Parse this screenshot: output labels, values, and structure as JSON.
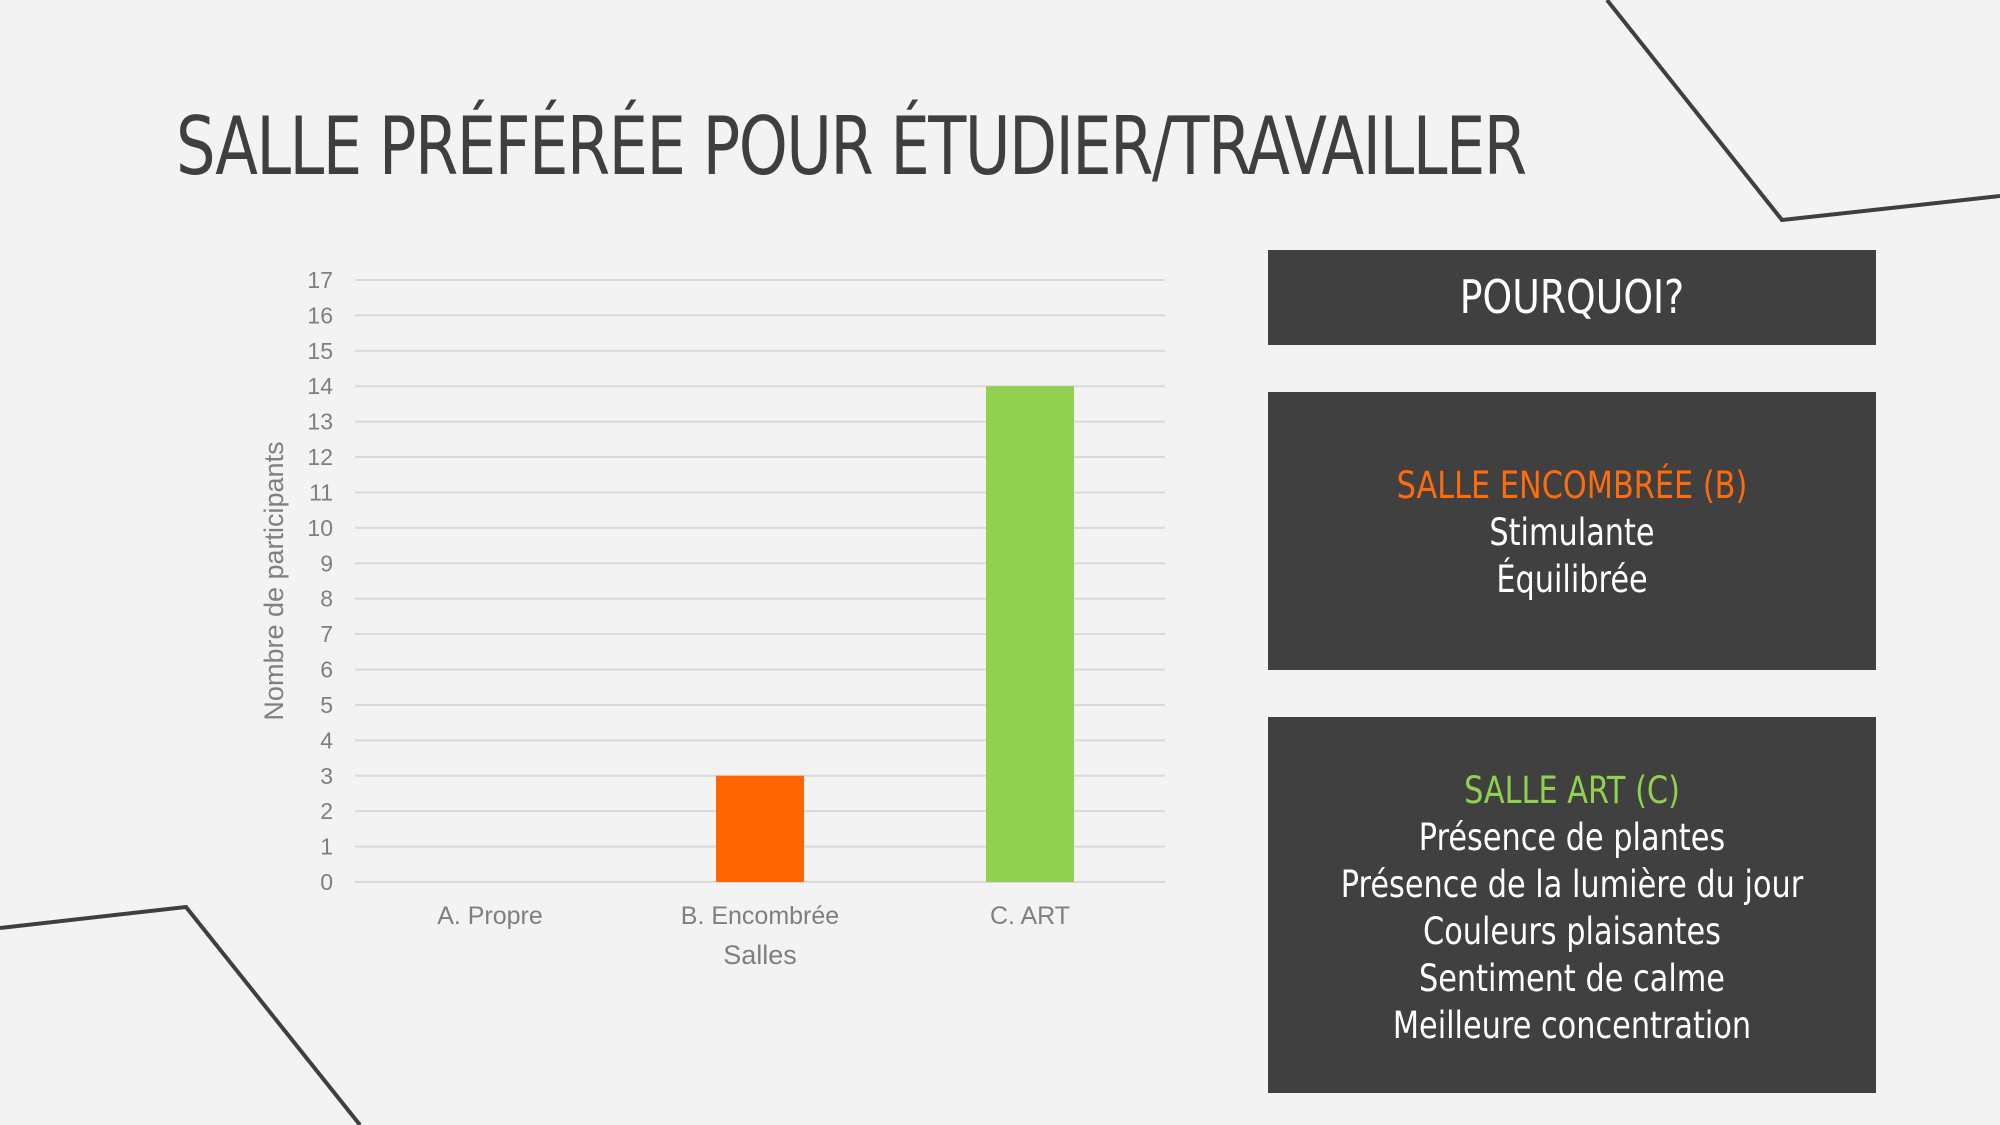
{
  "slide": {
    "title": "SALLE PRÉFÉRÉE POUR ÉTUDIER/TRAVAILLER"
  },
  "colors": {
    "background": "#f3f3f3",
    "panel": "#404040",
    "orange": "#ff6600",
    "green": "#92d050",
    "axis_text": "#7f7f7f"
  },
  "chart_data": {
    "type": "bar",
    "categories": [
      "A. Propre",
      "B. Encombrée",
      "C. ART"
    ],
    "values": [
      0,
      3,
      14
    ],
    "bar_colors": [
      "#ff6600",
      "#ff6600",
      "#92d050"
    ],
    "title": "",
    "xlabel": "Salles",
    "ylabel": "Nombre de participants",
    "ylim": [
      0,
      17
    ],
    "yticks": [
      "0",
      "1",
      "2",
      "3",
      "4",
      "5",
      "6",
      "7",
      "8",
      "9",
      "10",
      "11",
      "12",
      "13",
      "14",
      "15",
      "16",
      "17"
    ],
    "grid": true,
    "legend": "none"
  },
  "panels": {
    "why": {
      "label": "POURQUOI?"
    },
    "b": {
      "heading": "SALLE ENCOMBRÉE (B)",
      "lines": [
        "Stimulante",
        "Équilibrée"
      ]
    },
    "c": {
      "heading": "SALLE ART (C)",
      "lines": [
        "Présence de plantes",
        "Présence de la lumière du jour",
        "Couleurs plaisantes",
        "Sentiment de calme",
        "Meilleure concentration"
      ]
    }
  }
}
